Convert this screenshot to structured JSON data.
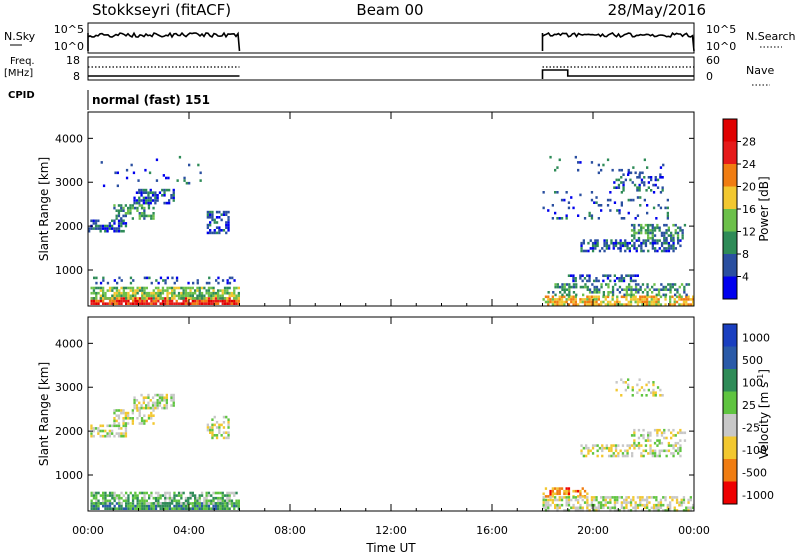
{
  "header": {
    "station": "Stokkseyri (fitACF)",
    "beam": "Beam 00",
    "date": "28/May/2016"
  },
  "status_panels": {
    "nsky_label": "N.Sky",
    "nsky_ticks": [
      "10^5",
      "10^0"
    ],
    "nsearch_label": "N.Search",
    "nsearch_ticks": [
      "10^5",
      "10^0"
    ],
    "freq_label": "Freq.",
    "freq_unit": "[MHz]",
    "freq_ticks": [
      "18",
      "8"
    ],
    "nave_label": "Nave",
    "nave_ticks": [
      "60",
      "0"
    ],
    "cpid_label": "CPID",
    "cpid_value": "normal (fast) 151"
  },
  "x_axis": {
    "label": "Time UT",
    "ticks": [
      "00:00",
      "04:00",
      "08:00",
      "12:00",
      "16:00",
      "20:00",
      "00:00"
    ]
  },
  "chart_data": [
    {
      "type": "heatmap",
      "name": "power",
      "ylabel": "Slant Range [km]",
      "yticks": [
        "1000",
        "2000",
        "3000",
        "4000"
      ],
      "ylim": [
        180,
        4600
      ],
      "xlim_hours": [
        0,
        24
      ],
      "colorbar_label": "Power [dB]",
      "colorbar_ticks": [
        "4",
        "8",
        "12",
        "16",
        "20",
        "24",
        "28"
      ],
      "colors": [
        "#0000ee",
        "#2a4fa0",
        "#2e8b57",
        "#6cc04a",
        "#f2c830",
        "#f07d12",
        "#e61a1a",
        "#e00000"
      ],
      "observing_windows_hours": [
        [
          0,
          6
        ],
        [
          18,
          24
        ]
      ],
      "echo_regions": [
        {
          "t0": 0.1,
          "t1": 6.0,
          "r0": 220,
          "r1": 380,
          "density": 0.85,
          "level": 6
        },
        {
          "t0": 0.1,
          "t1": 6.0,
          "r0": 380,
          "r1": 620,
          "density": 0.75,
          "level": 3
        },
        {
          "t0": 0.2,
          "t1": 5.8,
          "r0": 700,
          "r1": 850,
          "density": 0.25,
          "level": 1
        },
        {
          "t0": 0.0,
          "t1": 1.5,
          "r0": 1900,
          "r1": 2150,
          "density": 0.6,
          "level": 1
        },
        {
          "t0": 1.0,
          "t1": 2.6,
          "r0": 2200,
          "r1": 2500,
          "density": 0.6,
          "level": 2
        },
        {
          "t0": 1.8,
          "t1": 3.4,
          "r0": 2500,
          "r1": 2850,
          "density": 0.55,
          "level": 1
        },
        {
          "t0": 4.7,
          "t1": 5.6,
          "r0": 1850,
          "r1": 2350,
          "density": 0.55,
          "level": 1
        },
        {
          "t0": 0.5,
          "t1": 4.5,
          "r0": 2900,
          "r1": 3600,
          "density": 0.05,
          "level": 1
        },
        {
          "t0": 18.0,
          "t1": 24.0,
          "r0": 220,
          "r1": 420,
          "density": 0.8,
          "level": 4
        },
        {
          "t0": 18.2,
          "t1": 23.8,
          "r0": 420,
          "r1": 700,
          "density": 0.45,
          "level": 2
        },
        {
          "t0": 19.0,
          "t1": 22.0,
          "r0": 750,
          "r1": 900,
          "density": 0.5,
          "level": 1
        },
        {
          "t0": 19.5,
          "t1": 23.5,
          "r0": 1450,
          "r1": 1700,
          "density": 0.55,
          "level": 1
        },
        {
          "t0": 21.5,
          "t1": 23.6,
          "r0": 1700,
          "r1": 2050,
          "density": 0.5,
          "level": 2
        },
        {
          "t0": 18.0,
          "t1": 23.0,
          "r0": 2200,
          "r1": 2800,
          "density": 0.1,
          "level": 1
        },
        {
          "t0": 20.8,
          "t1": 22.8,
          "r0": 2800,
          "r1": 3200,
          "density": 0.3,
          "level": 1
        },
        {
          "t0": 18.0,
          "t1": 23.0,
          "r0": 3200,
          "r1": 3600,
          "density": 0.05,
          "level": 1
        }
      ]
    },
    {
      "type": "heatmap",
      "name": "velocity",
      "ylabel": "Slant Range [km]",
      "yticks": [
        "1000",
        "2000",
        "3000",
        "4000"
      ],
      "ylim": [
        180,
        4600
      ],
      "xlim_hours": [
        0,
        24
      ],
      "colorbar_label": "Velocity [m s^-1]",
      "colorbar_ticks": [
        "1000",
        "500",
        "100",
        "25",
        "-25",
        "-100",
        "-500",
        "-1000"
      ],
      "colors": [
        "#1a3fc0",
        "#2a5aa8",
        "#2e8b57",
        "#5fc440",
        "#c8c8c8",
        "#f2c830",
        "#f07d12",
        "#ee0000"
      ],
      "observing_windows_hours": [
        [
          0,
          6
        ],
        [
          18,
          24
        ]
      ],
      "echo_regions": [
        {
          "t0": 0.1,
          "t1": 6.0,
          "r0": 220,
          "r1": 380,
          "density": 0.85,
          "level": 2
        },
        {
          "t0": 0.1,
          "t1": 6.0,
          "r0": 380,
          "r1": 620,
          "density": 0.7,
          "level": 3
        },
        {
          "t0": 0.0,
          "t1": 1.5,
          "r0": 1900,
          "r1": 2150,
          "density": 0.55,
          "level": 4
        },
        {
          "t0": 1.0,
          "t1": 2.6,
          "r0": 2200,
          "r1": 2500,
          "density": 0.55,
          "level": 4
        },
        {
          "t0": 1.8,
          "t1": 3.4,
          "r0": 2500,
          "r1": 2850,
          "density": 0.5,
          "level": 4
        },
        {
          "t0": 4.7,
          "t1": 5.6,
          "r0": 1850,
          "r1": 2350,
          "density": 0.5,
          "level": 4
        },
        {
          "t0": 18.0,
          "t1": 19.8,
          "r0": 520,
          "r1": 720,
          "density": 0.5,
          "level": 6
        },
        {
          "t0": 18.0,
          "t1": 24.0,
          "r0": 220,
          "r1": 520,
          "density": 0.6,
          "level": 4
        },
        {
          "t0": 19.5,
          "t1": 23.5,
          "r0": 1450,
          "r1": 1700,
          "density": 0.5,
          "level": 4
        },
        {
          "t0": 21.5,
          "t1": 23.6,
          "r0": 1700,
          "r1": 2050,
          "density": 0.45,
          "level": 4
        },
        {
          "t0": 20.8,
          "t1": 22.8,
          "r0": 2800,
          "r1": 3200,
          "density": 0.25,
          "level": 4
        }
      ]
    }
  ]
}
